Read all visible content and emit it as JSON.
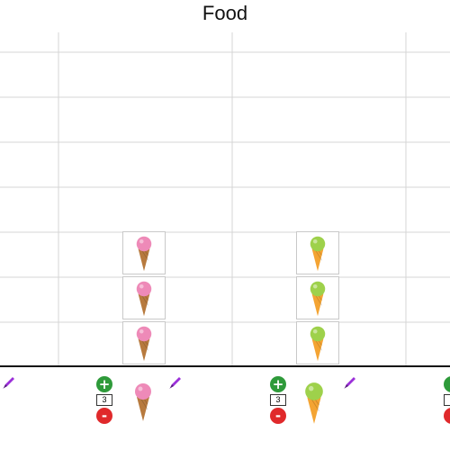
{
  "chart_data": {
    "type": "pictograph",
    "title": "Food",
    "categories": [
      "",
      "",
      "",
      ""
    ],
    "values": [
      0,
      3,
      3,
      0
    ],
    "icons": [
      "",
      "pink-ice-cream-icon",
      "green-ice-cream-icon",
      ""
    ],
    "grid": true
  },
  "controls": [
    {
      "plus_label": "+",
      "minus_label": "-",
      "count": "3",
      "icon": "pink-ice-cream-icon"
    },
    {
      "plus_label": "+",
      "minus_label": "-",
      "count": "3",
      "icon": "green-ice-cream-icon"
    }
  ],
  "colors": {
    "pink_scoop": "#ee8ab8",
    "green_scoop": "#9ed14b",
    "brown_cone": "#b77a3e",
    "orange_cone": "#f4a433",
    "pencil": "#9b30d9",
    "plus_button": "#2e9a3a",
    "minus_button": "#e0292b"
  }
}
